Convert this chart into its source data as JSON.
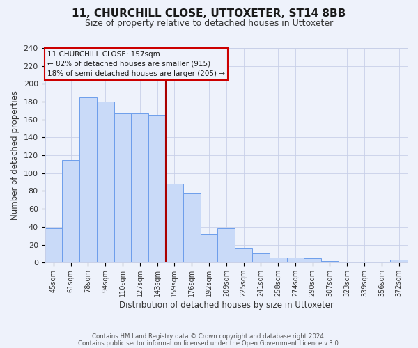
{
  "title": "11, CHURCHILL CLOSE, UTTOXETER, ST14 8BB",
  "subtitle": "Size of property relative to detached houses in Uttoxeter",
  "xlabel": "Distribution of detached houses by size in Uttoxeter",
  "ylabel": "Number of detached properties",
  "bar_labels": [
    "45sqm",
    "61sqm",
    "78sqm",
    "94sqm",
    "110sqm",
    "127sqm",
    "143sqm",
    "159sqm",
    "176sqm",
    "192sqm",
    "209sqm",
    "225sqm",
    "241sqm",
    "258sqm",
    "274sqm",
    "290sqm",
    "307sqm",
    "323sqm",
    "339sqm",
    "356sqm",
    "372sqm"
  ],
  "bar_heights": [
    38,
    115,
    185,
    180,
    167,
    167,
    165,
    88,
    77,
    32,
    38,
    16,
    10,
    6,
    6,
    5,
    2,
    0,
    0,
    1,
    3
  ],
  "bar_color": "#c9daf8",
  "bar_edge_color": "#6d9eeb",
  "background_color": "#eef2fb",
  "grid_color": "#c8d0e8",
  "vline_x": 7,
  "vline_color": "#aa0000",
  "annotation_line1": "11 CHURCHILL CLOSE: 157sqm",
  "annotation_line2": "← 82% of detached houses are smaller (915)",
  "annotation_line3": "18% of semi-detached houses are larger (205) →",
  "annotation_box_color": "#cc0000",
  "ylim": [
    0,
    240
  ],
  "yticks": [
    0,
    20,
    40,
    60,
    80,
    100,
    120,
    140,
    160,
    180,
    200,
    220,
    240
  ],
  "footnote1": "Contains HM Land Registry data © Crown copyright and database right 2024.",
  "footnote2": "Contains public sector information licensed under the Open Government Licence v.3.0."
}
